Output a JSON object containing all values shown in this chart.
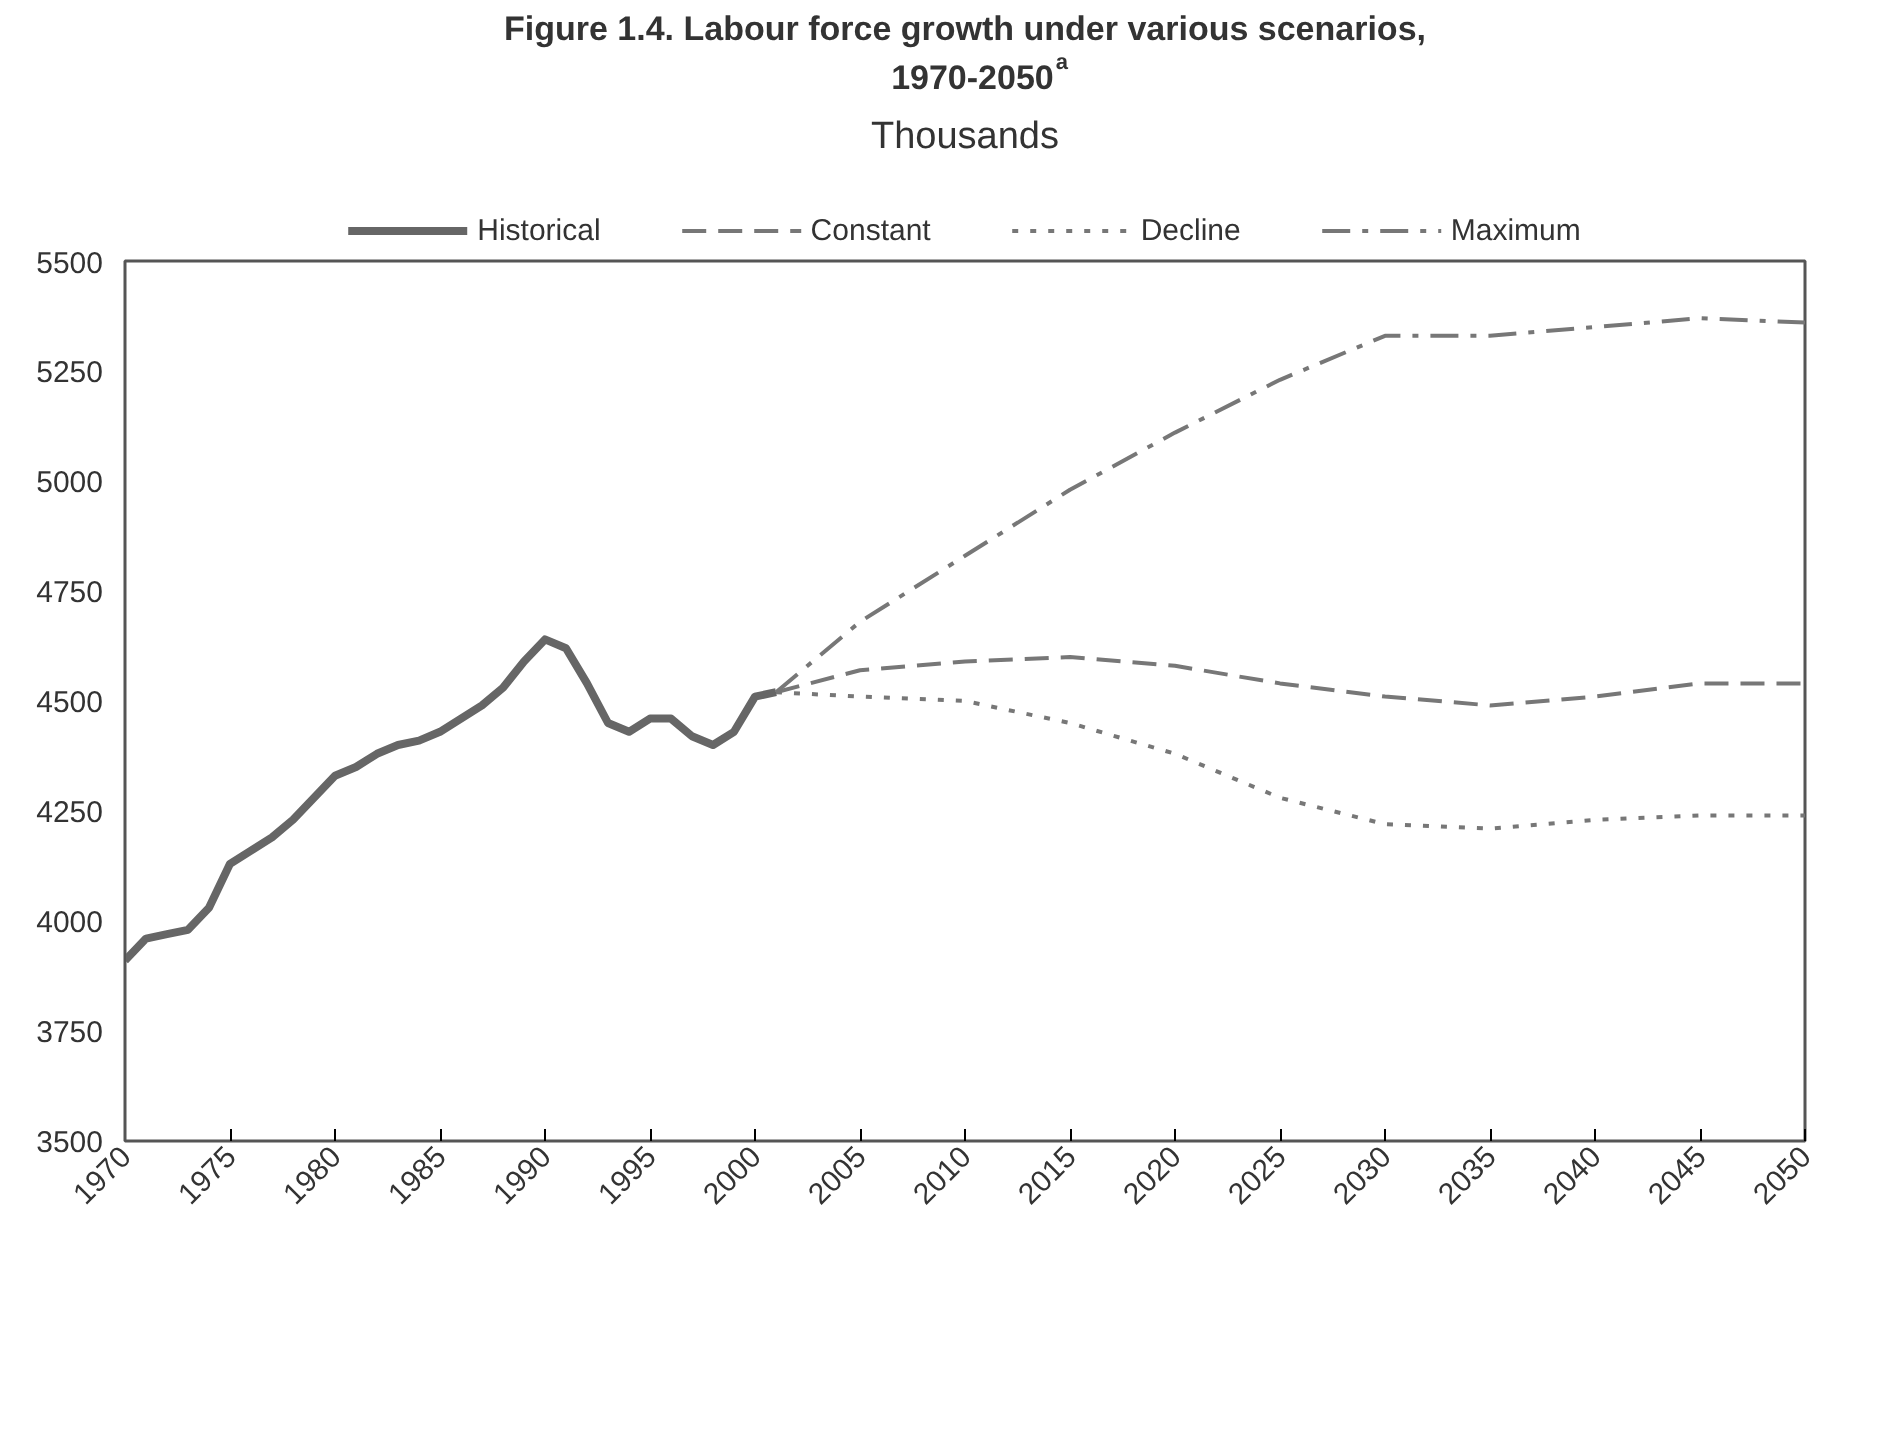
{
  "chart_data": {
    "type": "line",
    "title": "Figure 1.4. Labour force growth under various scenarios, 1970-2050$^{a}$",
    "subtitle": "Thousands",
    "xlim": [
      1970,
      2050
    ],
    "xticks": [
      1970,
      1975,
      1980,
      1985,
      1990,
      1995,
      2000,
      2005,
      2010,
      2015,
      2020,
      2025,
      2030,
      2035,
      2040,
      2045,
      2050
    ],
    "ylim": [
      3500,
      5500
    ],
    "yticks": [
      3500,
      3750,
      4000,
      4250,
      4500,
      4750,
      5000,
      5250,
      5500
    ],
    "legend": "top",
    "grid": false,
    "series": [
      {
        "name": "Historical",
        "color": "#666666",
        "line_style": "solid",
        "x": [
          1970,
          1971,
          1972,
          1973,
          1974,
          1975,
          1976,
          1977,
          1978,
          1979,
          1980,
          1981,
          1982,
          1983,
          1984,
          1985,
          1986,
          1987,
          1988,
          1989,
          1990,
          1991,
          1992,
          1993,
          1994,
          1995,
          1996,
          1997,
          1998,
          1999,
          2000,
          2001
        ],
        "values": [
          3910,
          3960,
          3970,
          3980,
          4030,
          4130,
          4160,
          4190,
          4230,
          4280,
          4330,
          4350,
          4380,
          4400,
          4410,
          4430,
          4460,
          4490,
          4530,
          4590,
          4640,
          4620,
          4540,
          4450,
          4430,
          4460,
          4460,
          4420,
          4400,
          4430,
          4510,
          4520
        ]
      },
      {
        "name": "Constant",
        "color": "#777777",
        "line_style": "dashed",
        "x": [
          2001,
          2005,
          2010,
          2015,
          2020,
          2025,
          2030,
          2035,
          2040,
          2045,
          2050
        ],
        "values": [
          4520,
          4570,
          4590,
          4600,
          4580,
          4540,
          4510,
          4490,
          4510,
          4540,
          4540
        ]
      },
      {
        "name": "Decline",
        "color": "#777777",
        "line_style": "dotted",
        "x": [
          2001,
          2005,
          2010,
          2015,
          2020,
          2025,
          2030,
          2035,
          2040,
          2045,
          2050
        ],
        "values": [
          4520,
          4510,
          4500,
          4450,
          4380,
          4280,
          4220,
          4210,
          4230,
          4240,
          4240
        ]
      },
      {
        "name": "Maximum",
        "color": "#777777",
        "line_style": "dashdot",
        "x": [
          2001,
          2005,
          2010,
          2015,
          2020,
          2025,
          2030,
          2035,
          2040,
          2045,
          2050
        ],
        "values": [
          4520,
          4680,
          4830,
          4980,
          5110,
          5230,
          5330,
          5330,
          5350,
          5370,
          5360
        ]
      }
    ]
  }
}
